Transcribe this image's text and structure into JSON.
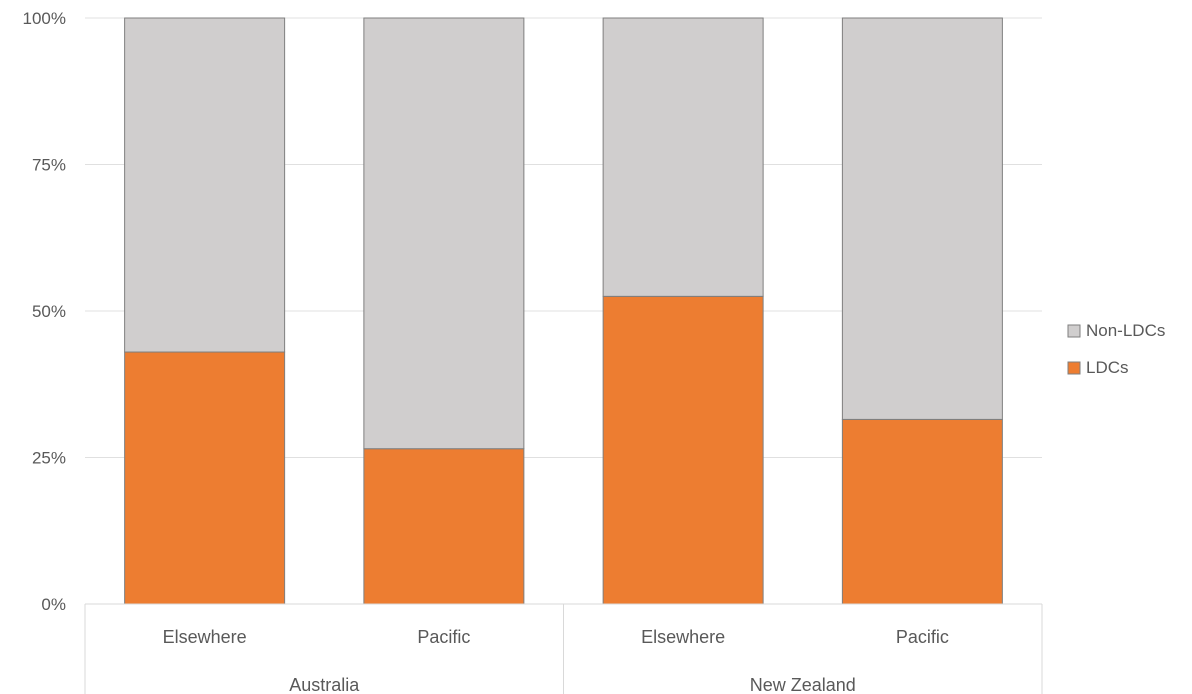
{
  "chart_data": {
    "type": "bar",
    "stacked": true,
    "normalized": true,
    "title": "",
    "xlabel": "",
    "ylabel": "",
    "ylim": [
      0,
      100
    ],
    "y_ticks": [
      "0%",
      "25%",
      "50%",
      "75%",
      "100%"
    ],
    "groups": [
      {
        "label": "Australia",
        "categories": [
          "Elsewhere",
          "Pacific"
        ]
      },
      {
        "label": "New Zealand",
        "categories": [
          "Elsewhere",
          "Pacific"
        ]
      }
    ],
    "categories": [
      "Elsewhere",
      "Pacific",
      "Elsewhere",
      "Pacific"
    ],
    "series": [
      {
        "name": "LDCs",
        "color": "#ed7d31",
        "values": [
          43,
          26.5,
          52.5,
          31.5
        ]
      },
      {
        "name": "Non-LDCs",
        "color": "#d0cece",
        "values": [
          57,
          73.5,
          47.5,
          68.5
        ]
      }
    ],
    "legend": {
      "position": "right",
      "entries": [
        {
          "name": "Non-LDCs",
          "color": "#d0cece"
        },
        {
          "name": "LDCs",
          "color": "#ed7d31"
        }
      ]
    },
    "grid": true
  }
}
